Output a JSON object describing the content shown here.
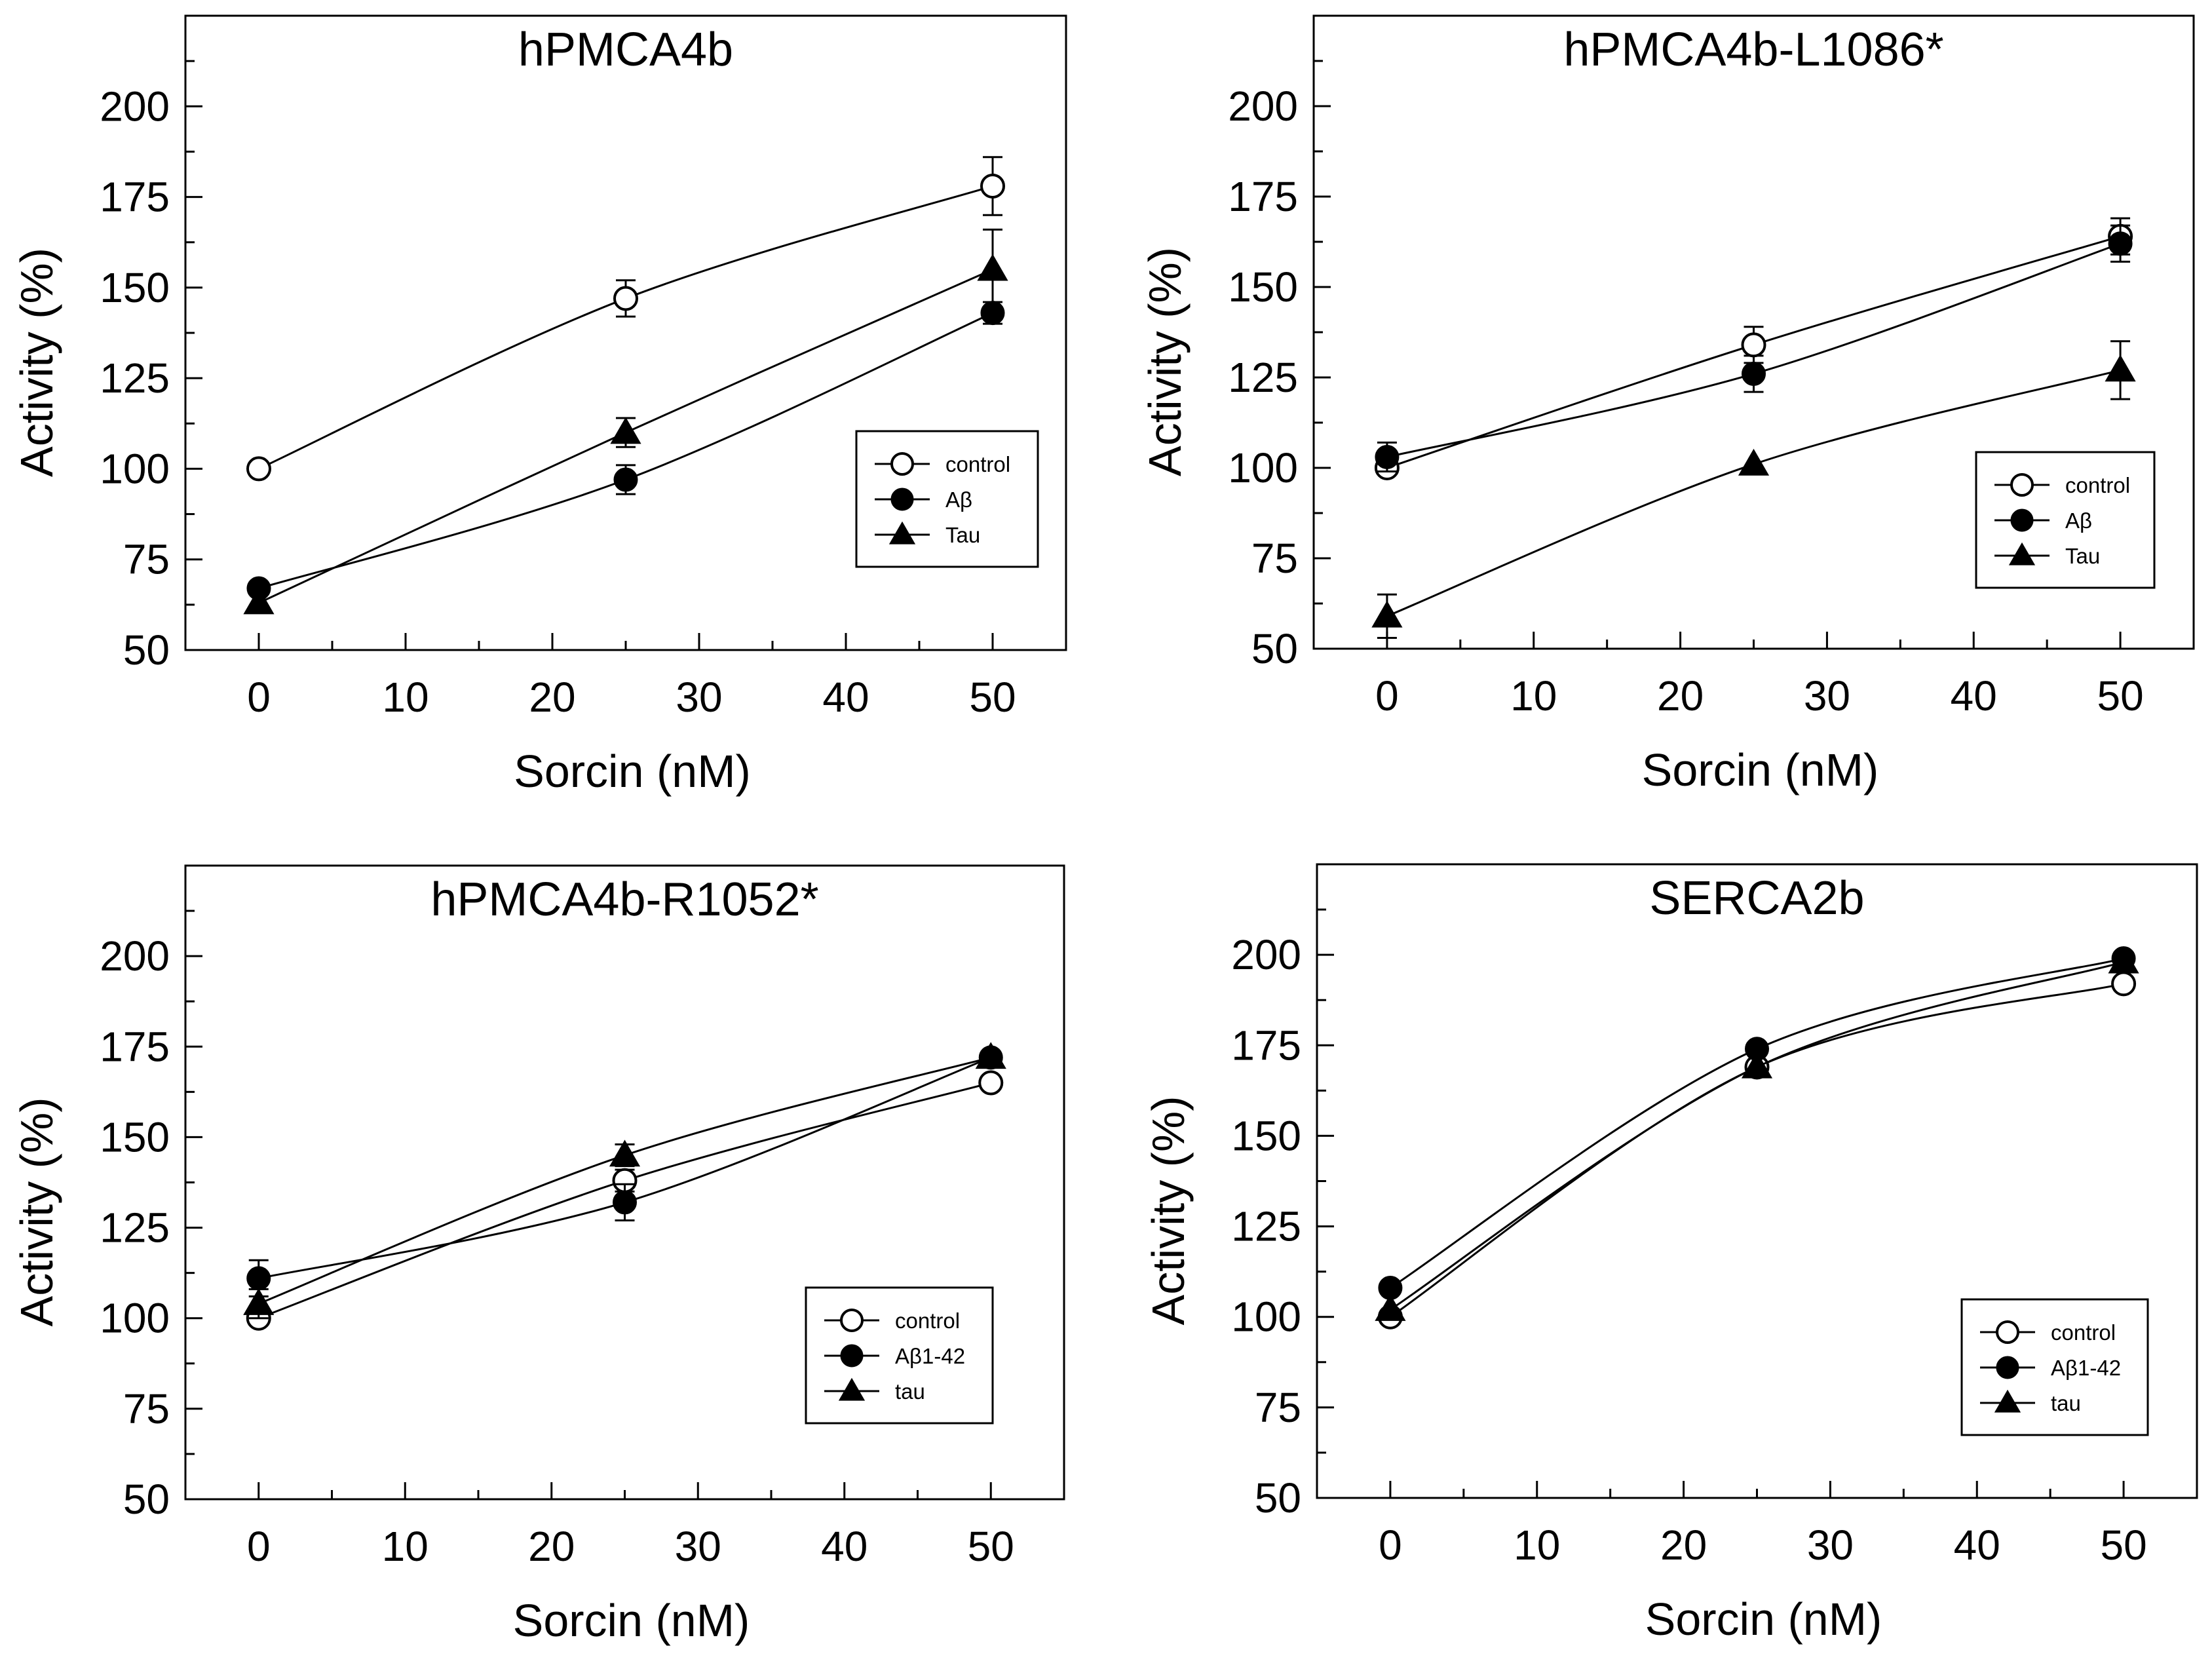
{
  "chart_data": [
    {
      "type": "line",
      "title": "hPMCA4b",
      "xlabel": "Sorcin (nM)",
      "ylabel": "Activity (%)",
      "xlim": [
        -5,
        55
      ],
      "ylim": [
        50,
        225
      ],
      "xticks": [
        0,
        10,
        20,
        30,
        40,
        50
      ],
      "yticks": [
        50,
        75,
        100,
        125,
        150,
        175,
        200
      ],
      "x": [
        0,
        25,
        50
      ],
      "series": [
        {
          "name": "control",
          "marker": "open-circle",
          "values": [
            100,
            147,
            178
          ],
          "errors": [
            0,
            5,
            8
          ]
        },
        {
          "name": "Aβ",
          "marker": "filled-circle",
          "values": [
            67,
            97,
            143
          ],
          "errors": [
            0,
            4,
            3
          ]
        },
        {
          "name": "Tau",
          "marker": "filled-triangle",
          "values": [
            63,
            110,
            155
          ],
          "errors": [
            0,
            4,
            11
          ]
        }
      ],
      "legend_position": "right"
    },
    {
      "type": "line",
      "title": "hPMCA4b-L1086*",
      "xlabel": "Sorcin (nM)",
      "ylabel": "Activity (%)",
      "xlim": [
        -5,
        55
      ],
      "ylim": [
        50,
        225
      ],
      "xticks": [
        0,
        10,
        20,
        30,
        40,
        50
      ],
      "yticks": [
        50,
        75,
        100,
        125,
        150,
        175,
        200
      ],
      "x": [
        0,
        25,
        50
      ],
      "series": [
        {
          "name": "control",
          "marker": "open-circle",
          "values": [
            100,
            134,
            164
          ],
          "errors": [
            0,
            5,
            5
          ]
        },
        {
          "name": "Aβ",
          "marker": "filled-circle",
          "values": [
            103,
            126,
            162
          ],
          "errors": [
            4,
            5,
            5
          ]
        },
        {
          "name": "Tau",
          "marker": "filled-triangle",
          "values": [
            59,
            101,
            127
          ],
          "errors": [
            6,
            0,
            8
          ]
        }
      ],
      "legend_position": "right"
    },
    {
      "type": "line",
      "title": "hPMCA4b-R1052*",
      "xlabel": "Sorcin (nM)",
      "ylabel": "Activity (%)",
      "xlim": [
        -5,
        55
      ],
      "ylim": [
        50,
        225
      ],
      "xticks": [
        0,
        10,
        20,
        30,
        40,
        50
      ],
      "yticks": [
        50,
        75,
        100,
        125,
        150,
        175,
        200
      ],
      "x": [
        0,
        25,
        50
      ],
      "series": [
        {
          "name": "control",
          "marker": "open-circle",
          "values": [
            100,
            138,
            165
          ],
          "errors": [
            0,
            3,
            0
          ]
        },
        {
          "name": "Aβ1-42",
          "marker": "filled-circle",
          "values": [
            111,
            132,
            172
          ],
          "errors": [
            5,
            5,
            0
          ]
        },
        {
          "name": "tau",
          "marker": "filled-triangle",
          "values": [
            104,
            145,
            172
          ],
          "errors": [
            4,
            3,
            0
          ]
        }
      ],
      "legend_position": "right"
    },
    {
      "type": "line",
      "title": "SERCA2b",
      "xlabel": "Sorcin (nM)",
      "ylabel": "Activity (%)",
      "xlim": [
        -5,
        55
      ],
      "ylim": [
        50,
        225
      ],
      "xticks": [
        0,
        10,
        20,
        30,
        40,
        50
      ],
      "yticks": [
        50,
        75,
        100,
        125,
        150,
        175,
        200
      ],
      "x": [
        0,
        25,
        50
      ],
      "series": [
        {
          "name": "control",
          "marker": "open-circle",
          "values": [
            100,
            169,
            192
          ],
          "errors": [
            0,
            0,
            0
          ]
        },
        {
          "name": "Aβ1-42",
          "marker": "filled-circle",
          "values": [
            108,
            174,
            199
          ],
          "errors": [
            0,
            0,
            0
          ]
        },
        {
          "name": "tau",
          "marker": "filled-triangle",
          "values": [
            102,
            169,
            198
          ],
          "errors": [
            0,
            0,
            0
          ]
        }
      ],
      "legend_position": "right"
    }
  ]
}
